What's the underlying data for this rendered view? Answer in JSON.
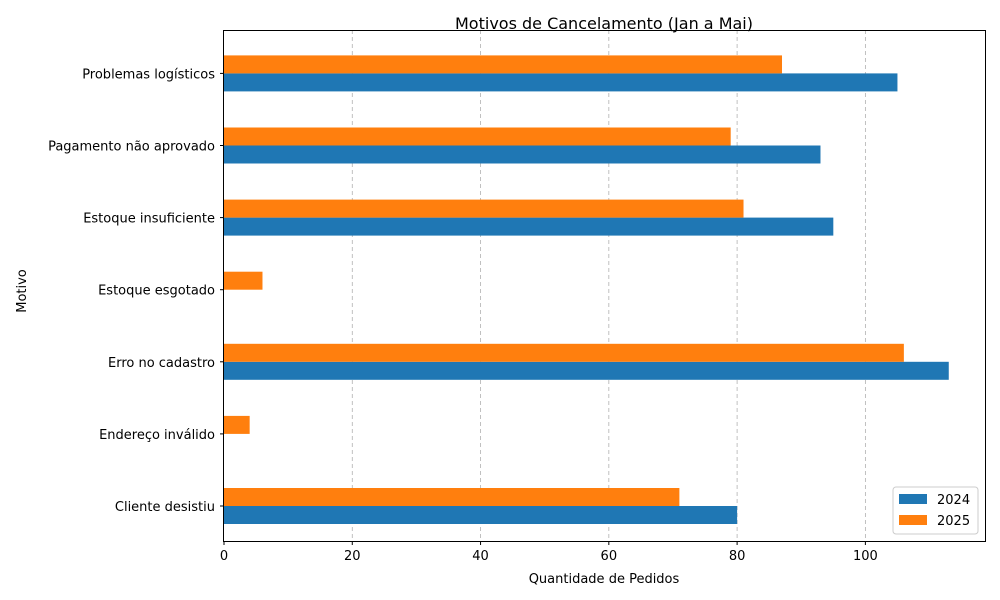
{
  "chart_data": {
    "type": "bar",
    "orientation": "horizontal",
    "title": "Motivos de Cancelamento (Jan a Mai)",
    "xlabel": "Quantidade de Pedidos",
    "ylabel": "Motivo",
    "categories": [
      "Cliente desistiu",
      "Endereço inválido",
      "Erro no cadastro",
      "Estoque esgotado",
      "Estoque insuficiente",
      "Pagamento não aprovado",
      "Problemas logísticos"
    ],
    "series": [
      {
        "name": "2024",
        "color": "#1f77b4",
        "values": [
          80,
          0,
          113,
          0,
          95,
          93,
          105
        ]
      },
      {
        "name": "2025",
        "color": "#ff7f0e",
        "values": [
          71,
          4,
          106,
          6,
          81,
          79,
          87
        ]
      }
    ],
    "xlim": [
      0,
      118.65
    ],
    "xticks": [
      0,
      20,
      40,
      60,
      80,
      100
    ],
    "grid": "x-dashed",
    "legend_position": "lower-right"
  }
}
